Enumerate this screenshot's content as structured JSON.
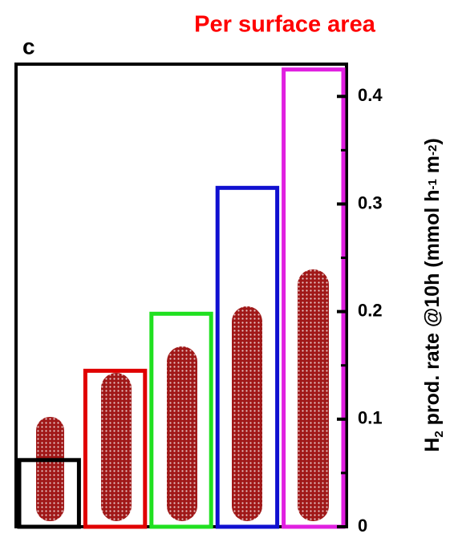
{
  "chart_data": {
    "type": "bar",
    "title": "Per surface area",
    "panel_label": "c",
    "ylabel_parts": [
      "H",
      "2",
      " prod. rate @10h (mmol h",
      "-1",
      " m",
      "-2",
      ")"
    ],
    "categories": [
      null,
      null,
      null,
      null,
      null
    ],
    "values": [
      0.062,
      0.145,
      0.198,
      0.315,
      0.425
    ],
    "colors": [
      "#000000",
      "#e00000",
      "#20e020",
      "#1010d0",
      "#e020e0"
    ],
    "ylim": [
      0,
      0.43
    ],
    "yticks": [
      0,
      0.1,
      0.2,
      0.3,
      0.4
    ],
    "yminorticks": [
      0.05,
      0.15,
      0.25,
      0.35
    ]
  }
}
